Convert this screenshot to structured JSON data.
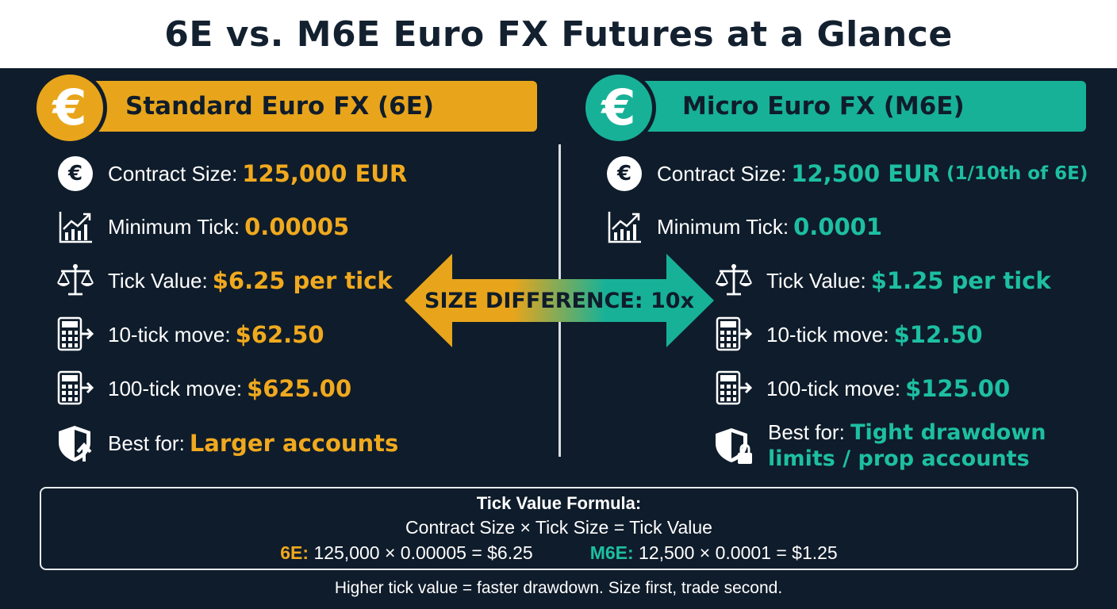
{
  "title": "6E vs. M6E Euro FX Futures at a Glance",
  "colors": {
    "background": "#0f1c2b",
    "gold": "#e8a51b",
    "teal": "#17b198"
  },
  "left": {
    "coin_symbol": "€",
    "heading": "Standard Euro FX (6E)",
    "contract_size_label": "Contract Size:",
    "contract_size_value": "125,000 EUR",
    "min_tick_label": "Minimum Tick:",
    "min_tick_value": "0.00005",
    "tick_value_label": "Tick Value:",
    "tick_value_value": "$6.25 per tick",
    "ten_tick_label": "10-tick move:",
    "ten_tick_value": "$62.50",
    "hundred_tick_label": "100-tick move:",
    "hundred_tick_value": "$625.00",
    "best_for_label": "Best for:",
    "best_for_value": "Larger accounts"
  },
  "right": {
    "coin_symbol": "€",
    "heading": "Micro Euro FX (M6E)",
    "contract_size_label": "Contract Size:",
    "contract_size_value": "12,500 EUR",
    "contract_size_note": "(1/10th of 6E)",
    "min_tick_label": "Minimum Tick:",
    "min_tick_value": "0.0001",
    "tick_value_label": "Tick Value:",
    "tick_value_value": "$1.25 per tick",
    "ten_tick_label": "10-tick move:",
    "ten_tick_value": "$12.50",
    "hundred_tick_label": "100-tick move:",
    "hundred_tick_value": "$125.00",
    "best_for_label": "Best for:",
    "best_for_value_line1": "Tight drawdown",
    "best_for_value_line2": "limits / prop accounts"
  },
  "center_arrow": {
    "text": "SIZE DIFFERENCE: 10x"
  },
  "formula": {
    "title": "Tick Value Formula:",
    "line": "Contract Size × Tick Size = Tick Value",
    "ex_6e_key": "6E:",
    "ex_6e_value": "125,000 × 0.00005 = $6.25",
    "ex_m6e_key": "M6E:",
    "ex_m6e_value": "12,500 × 0.0001 = $1.25"
  },
  "footer": "Higher tick value = faster drawdown. Size first, trade second.",
  "icons": [
    "euro-icon",
    "chart-growth-icon",
    "scale-icon",
    "calculator-arrow-icon",
    "shield-arrow-icon",
    "shield-lock-icon"
  ]
}
